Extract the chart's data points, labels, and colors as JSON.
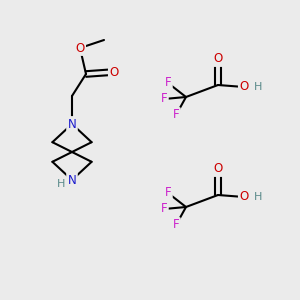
{
  "bg_color": "#ebebeb",
  "atom_colors": {
    "C": "#000000",
    "H": "#5a8a8a",
    "N": "#1a1acc",
    "O": "#cc0000",
    "F": "#cc22cc"
  },
  "fig_width": 3.0,
  "fig_height": 3.0,
  "dpi": 100
}
